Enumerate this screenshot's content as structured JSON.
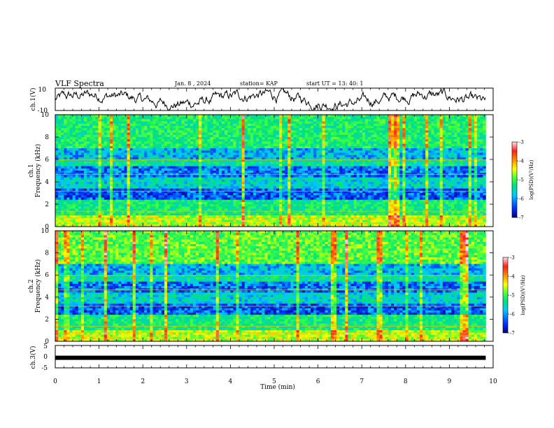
{
  "header": {
    "title": "VLF Spectra",
    "date": "Jan. 8 , 2024",
    "station": "station= KAP",
    "start": "start UT = 13: 40: 1"
  },
  "chart_data": [
    {
      "type": "line",
      "panel": "ch.1 waveform",
      "ylabel": "ch.1(V)",
      "ytick_labels": [
        "10",
        "-10"
      ],
      "ylim": [
        -10,
        10
      ],
      "xlim": [
        0,
        10
      ],
      "color": "#000000"
    },
    {
      "type": "heatmap",
      "panel": "ch.1 spectrogram",
      "ylabel": "ch.1\nFrequency (kHz)",
      "ytick_labels": [
        "0",
        "2",
        "4",
        "6",
        "8",
        "10"
      ],
      "ylim": [
        0,
        10
      ],
      "xlim": [
        0,
        9.83
      ],
      "colorbar": {
        "label": "log(PSD)(V²/Hz)",
        "tick_labels": [
          "-3",
          "-4",
          "-5",
          "-6",
          "-7"
        ],
        "range": [
          -7,
          -3
        ],
        "colors": [
          "#000080",
          "#0030ff",
          "#00c8ff",
          "#00e080",
          "#40ff40",
          "#ffff00",
          "#ff9000",
          "#ff2020",
          "#ffe0e0"
        ]
      }
    },
    {
      "type": "heatmap",
      "panel": "ch.2 spectrogram",
      "ylabel": "ch.2\nFrequency (kHz)",
      "ytick_labels": [
        "0",
        "2",
        "4",
        "6",
        "8",
        "10"
      ],
      "ylim": [
        0,
        10
      ],
      "xlim": [
        0,
        9.83
      ],
      "colorbar": {
        "label": "log(PSD)(V²/Hz)",
        "tick_labels": [
          "-3",
          "-4",
          "-5",
          "-6",
          "-7"
        ],
        "range": [
          -7,
          -3
        ]
      }
    },
    {
      "type": "line",
      "panel": "ch.3 waveform",
      "ylabel": "ch.3(V)",
      "ytick_labels": [
        "5",
        "0",
        "-5"
      ],
      "ylim": [
        -5,
        5
      ],
      "xlim": [
        0,
        10
      ],
      "value": -0.5,
      "xlabel": "Time (min)",
      "xtick_labels": [
        "0",
        "1",
        "2",
        "3",
        "4",
        "5",
        "6",
        "7",
        "8",
        "9",
        "10"
      ]
    }
  ]
}
